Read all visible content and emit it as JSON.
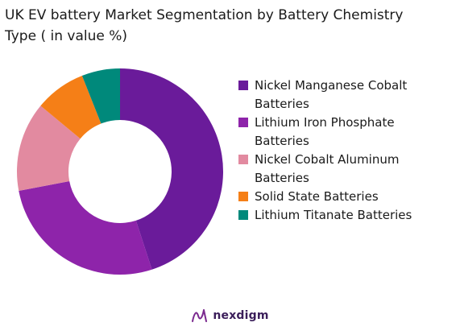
{
  "chart_data": {
    "type": "pie",
    "variant": "donut",
    "title": "UK EV battery Market Segmentation by Battery Chemistry\nType ( in value %)",
    "legend_position": "right",
    "categories": [
      "Nickel Manganese Cobalt\nBatteries",
      "Lithium Iron Phosphate\nBatteries",
      "Nickel Cobalt Aluminum\nBatteries",
      "Solid State Batteries",
      "Lithium Titanate Batteries"
    ],
    "values": [
      45,
      27,
      14,
      8,
      6
    ],
    "colors": [
      "#6a1b9a",
      "#8e24aa",
      "#e28aa0",
      "#f57f17",
      "#00897b"
    ]
  },
  "brand": {
    "name": "nexdigm",
    "icon": "nexdigm-logo-icon"
  }
}
